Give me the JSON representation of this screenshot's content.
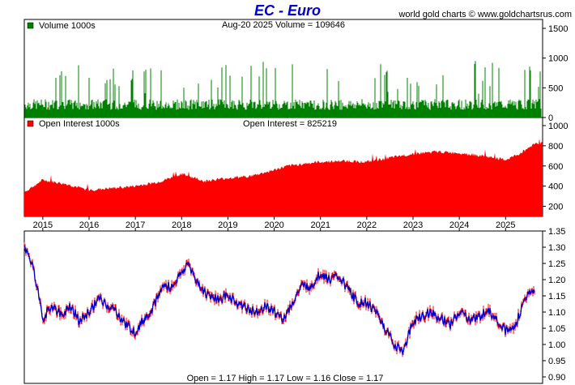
{
  "header": {
    "title": "EC  -  Euro",
    "site": "world gold charts © www.goldchartsrus.com"
  },
  "chart_data": [
    {
      "type": "bar",
      "panel": "volume",
      "legend": "Volume  1000s",
      "legend_color": "#008000",
      "readout": "Aug-20  2025   Volume = 109646",
      "ylim": [
        0,
        1650
      ],
      "yticks": [
        "0",
        "500",
        "1000",
        "1500"
      ],
      "ytick_values": [
        0,
        500,
        1000,
        1500
      ],
      "color": "#008000"
    },
    {
      "type": "area",
      "panel": "open_interest",
      "legend": "Open Interest  1000s",
      "legend_color": "#ff0000",
      "readout": "Open Interest = 825219",
      "ylim": [
        100,
        1080
      ],
      "yticks": [
        "200",
        "400",
        "600",
        "800",
        "1000"
      ],
      "ytick_values": [
        200,
        400,
        600,
        800,
        1000
      ],
      "color": "#ff0000",
      "x": [
        2014.6,
        2015.0,
        2015.5,
        2016.0,
        2016.5,
        2017.0,
        2017.5,
        2018.0,
        2018.5,
        2019.0,
        2019.5,
        2020.0,
        2020.3,
        2020.6,
        2021.0,
        2021.5,
        2022.0,
        2022.5,
        2023.0,
        2023.5,
        2024.0,
        2024.5,
        2025.0,
        2025.3,
        2025.64
      ],
      "values": [
        340,
        460,
        420,
        360,
        380,
        400,
        440,
        520,
        450,
        480,
        500,
        560,
        600,
        620,
        640,
        650,
        640,
        680,
        720,
        740,
        730,
        700,
        660,
        720,
        825
      ]
    },
    {
      "type": "line",
      "panel": "price",
      "readout": "Open = 1.17     High = 1.17     Low = 1.16     Close = 1.17",
      "ylim": [
        0.88,
        1.35
      ],
      "yticks": [
        "0.90",
        "0.95",
        "1.00",
        "1.05",
        "1.10",
        "1.15",
        "1.20",
        "1.25",
        "1.30",
        "1.35"
      ],
      "ytick_values": [
        0.9,
        0.95,
        1.0,
        1.05,
        1.1,
        1.15,
        1.2,
        1.25,
        1.3,
        1.35
      ],
      "xlim": [
        2014.6,
        2025.8
      ],
      "xticks": [
        "2015",
        "2016",
        "2017",
        "2018",
        "2019",
        "2020",
        "2021",
        "2022",
        "2023",
        "2024",
        "2025"
      ],
      "xtick_values": [
        2015,
        2016,
        2017,
        2018,
        2019,
        2020,
        2021,
        2022,
        2023,
        2024,
        2025
      ],
      "series_color": "#0000cc",
      "accent_color": "#ff0000",
      "x": [
        2014.6,
        2014.8,
        2015.0,
        2015.2,
        2015.4,
        2015.6,
        2015.8,
        2016.0,
        2016.2,
        2016.4,
        2016.6,
        2016.8,
        2017.0,
        2017.2,
        2017.4,
        2017.6,
        2017.8,
        2018.0,
        2018.15,
        2018.3,
        2018.5,
        2018.8,
        2019.0,
        2019.3,
        2019.6,
        2019.8,
        2020.0,
        2020.2,
        2020.4,
        2020.6,
        2020.8,
        2021.0,
        2021.2,
        2021.4,
        2021.6,
        2021.8,
        2022.0,
        2022.2,
        2022.4,
        2022.6,
        2022.8,
        2023.0,
        2023.2,
        2023.4,
        2023.6,
        2023.8,
        2024.0,
        2024.2,
        2024.4,
        2024.6,
        2024.8,
        2025.0,
        2025.2,
        2025.4,
        2025.64
      ],
      "values": [
        1.3,
        1.24,
        1.08,
        1.12,
        1.09,
        1.12,
        1.07,
        1.1,
        1.14,
        1.12,
        1.1,
        1.06,
        1.04,
        1.08,
        1.12,
        1.18,
        1.18,
        1.22,
        1.25,
        1.2,
        1.16,
        1.14,
        1.15,
        1.12,
        1.1,
        1.12,
        1.1,
        1.08,
        1.13,
        1.18,
        1.18,
        1.22,
        1.2,
        1.21,
        1.17,
        1.13,
        1.13,
        1.1,
        1.05,
        1.0,
        0.98,
        1.07,
        1.09,
        1.1,
        1.08,
        1.06,
        1.1,
        1.08,
        1.08,
        1.11,
        1.08,
        1.04,
        1.05,
        1.14,
        1.17
      ]
    }
  ]
}
